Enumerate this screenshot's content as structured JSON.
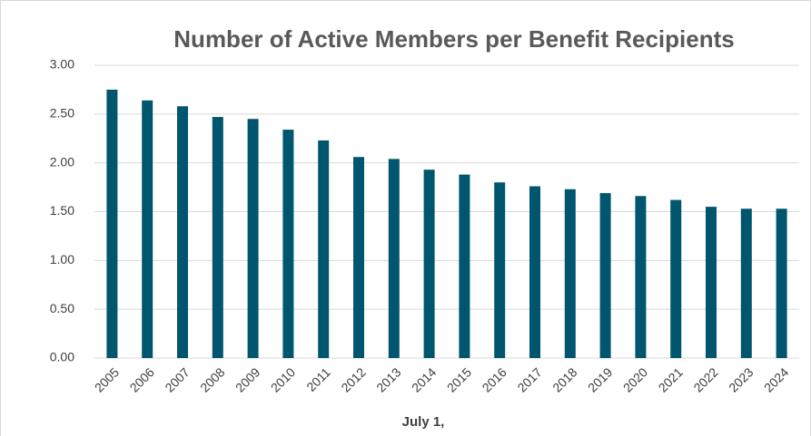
{
  "chart_data": {
    "type": "bar",
    "title": "Number of Active Members per Benefit Recipients",
    "x_label": "July 1,",
    "categories": [
      "2005",
      "2006",
      "2007",
      "2008",
      "2009",
      "2010",
      "2011",
      "2012",
      "2013",
      "2014",
      "2015",
      "2016",
      "2017",
      "2018",
      "2019",
      "2020",
      "2021",
      "2022",
      "2023",
      "2024"
    ],
    "values": [
      2.75,
      2.64,
      2.58,
      2.47,
      2.45,
      2.34,
      2.23,
      2.06,
      2.04,
      1.93,
      1.88,
      1.8,
      1.76,
      1.73,
      1.69,
      1.66,
      1.62,
      1.55,
      1.53,
      1.53
    ],
    "color": "#00566e",
    "ylim": [
      0,
      3
    ],
    "yticks": [
      {
        "value": 0,
        "label": "0.00"
      },
      {
        "value": 0.5,
        "label": "0.50"
      },
      {
        "value": 1,
        "label": "1.00"
      },
      {
        "value": 1.5,
        "label": "1.50"
      },
      {
        "value": 2,
        "label": "2.00"
      },
      {
        "value": 2.5,
        "label": "2.50"
      },
      {
        "value": 3,
        "label": "3.00"
      }
    ],
    "grid": true
  }
}
